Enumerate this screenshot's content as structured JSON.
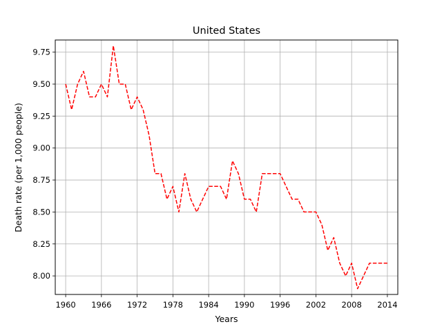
{
  "chart_data": {
    "type": "line",
    "title": "United States",
    "xlabel": "Years",
    "ylabel": "Death rate (per 1,000 people)",
    "xlim": [
      1958.25,
      2015.75
    ],
    "ylim": [
      7.855,
      9.845
    ],
    "xticks": [
      1960,
      1966,
      1972,
      1978,
      1984,
      1990,
      1996,
      2002,
      2008,
      2014
    ],
    "yticks": [
      8.0,
      8.25,
      8.5,
      8.75,
      9.0,
      9.25,
      9.5,
      9.75
    ],
    "grid": true,
    "series": [
      {
        "color": "#ff0000",
        "line_style": "dashed",
        "x": [
          1960,
          1961,
          1962,
          1963,
          1964,
          1965,
          1966,
          1967,
          1968,
          1969,
          1970,
          1971,
          1972,
          1973,
          1974,
          1975,
          1976,
          1977,
          1978,
          1979,
          1980,
          1981,
          1982,
          1983,
          1984,
          1985,
          1986,
          1987,
          1988,
          1989,
          1990,
          1991,
          1992,
          1993,
          1994,
          1995,
          1996,
          1997,
          1998,
          1999,
          2000,
          2001,
          2002,
          2003,
          2004,
          2005,
          2006,
          2007,
          2008,
          2009,
          2010,
          2011,
          2012,
          2013,
          2014
        ],
        "values": [
          9.5,
          9.3,
          9.5,
          9.6,
          9.4,
          9.4,
          9.5,
          9.4,
          9.8,
          9.5,
          9.5,
          9.3,
          9.4,
          9.3,
          9.1,
          8.8,
          8.8,
          8.6,
          8.7,
          8.5,
          8.8,
          8.6,
          8.5,
          8.6,
          8.7,
          8.7,
          8.7,
          8.6,
          8.9,
          8.8,
          8.6,
          8.6,
          8.5,
          8.8,
          8.8,
          8.8,
          8.8,
          8.7,
          8.6,
          8.6,
          8.5,
          8.5,
          8.5,
          8.4,
          8.2,
          8.3,
          8.1,
          8.0,
          8.1,
          7.9,
          8.0,
          8.1,
          8.1,
          8.1,
          8.1
        ]
      }
    ]
  }
}
